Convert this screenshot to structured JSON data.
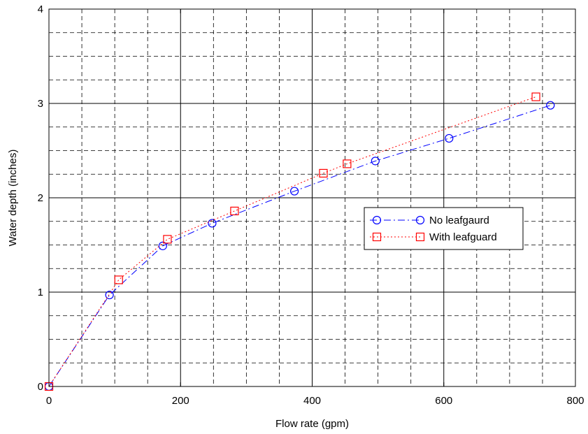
{
  "chart_data": {
    "type": "line",
    "title": "",
    "xlabel": "Flow rate (gpm)",
    "ylabel": "Water depth (inches)",
    "xlim": [
      0,
      800
    ],
    "ylim": [
      0,
      4
    ],
    "xticks": [
      0,
      200,
      400,
      600,
      800
    ],
    "yticks": [
      0,
      1,
      2,
      3,
      4
    ],
    "x_minor_step": 50,
    "y_minor_step": 0.25,
    "grid": true,
    "legend_position": "center-right",
    "series": [
      {
        "name": "No leafgaurd",
        "color": "#0000ff",
        "marker": "circle",
        "line_style": "dash-dot",
        "points": [
          [
            0,
            0
          ],
          [
            92,
            0.97
          ],
          [
            173,
            1.49
          ],
          [
            248,
            1.73
          ],
          [
            373,
            2.07
          ],
          [
            496,
            2.39
          ],
          [
            608,
            2.63
          ],
          [
            762,
            2.98
          ]
        ]
      },
      {
        "name": "With leafguard",
        "color": "#ff0000",
        "marker": "square",
        "line_style": "dotted",
        "points": [
          [
            0,
            0
          ],
          [
            106,
            1.13
          ],
          [
            180,
            1.56
          ],
          [
            282,
            1.86
          ],
          [
            417,
            2.26
          ],
          [
            453,
            2.36
          ],
          [
            740,
            3.07
          ]
        ]
      }
    ]
  }
}
